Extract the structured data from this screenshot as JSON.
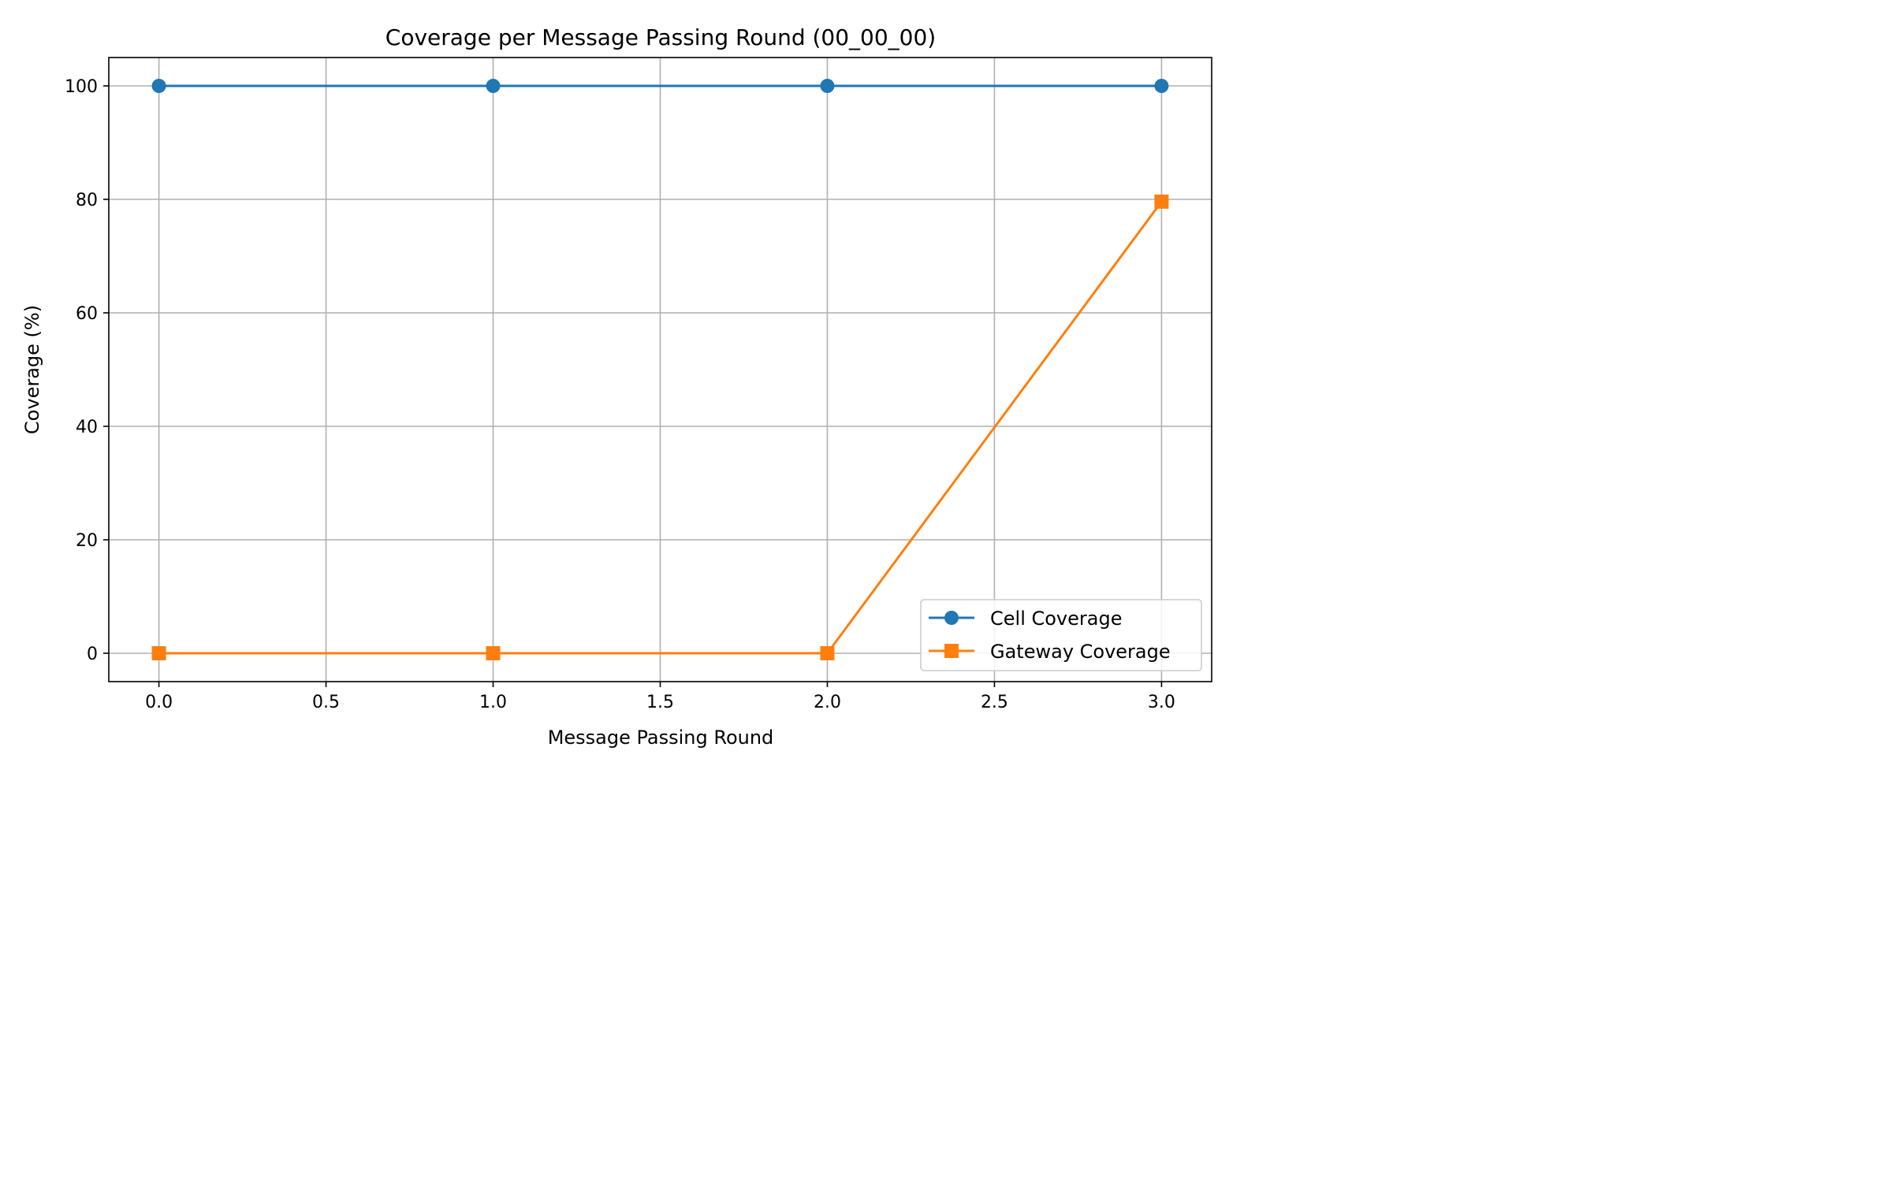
{
  "chart_data": {
    "type": "line",
    "title": "Coverage per Message Passing Round (00_00_00)",
    "xlabel": "Message Passing Round",
    "ylabel": "Coverage (%)",
    "xlim": [
      -0.15,
      3.15
    ],
    "ylim": [
      -5,
      105
    ],
    "xticks": [
      0.0,
      0.5,
      1.0,
      1.5,
      2.0,
      2.5,
      3.0
    ],
    "xtick_labels": [
      "0.0",
      "0.5",
      "1.0",
      "1.5",
      "2.0",
      "2.5",
      "3.0"
    ],
    "yticks": [
      0,
      20,
      40,
      60,
      80,
      100
    ],
    "ytick_labels": [
      "0",
      "20",
      "40",
      "60",
      "80",
      "100"
    ],
    "grid": true,
    "legend_position": "lower-right",
    "x": [
      0,
      1,
      2,
      3
    ],
    "series": [
      {
        "name": "Cell Coverage",
        "values": [
          100,
          100,
          100,
          100
        ],
        "color": "#1f77b4",
        "marker": "circle"
      },
      {
        "name": "Gateway Coverage",
        "values": [
          0,
          0,
          0,
          79.6
        ],
        "color": "#ff7f0e",
        "marker": "square"
      }
    ]
  }
}
